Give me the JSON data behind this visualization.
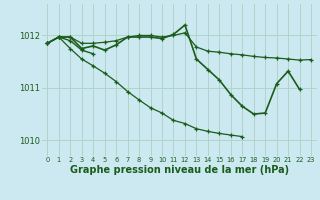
{
  "background_color": "#cce8f0",
  "grid_color": "#b0d4c8",
  "line_color": "#1a5c1a",
  "xlabel": "Graphe pression niveau de la mer (hPa)",
  "xlabel_fontsize": 7,
  "xlim": [
    -0.5,
    23.5
  ],
  "ylim": [
    1009.7,
    1012.6
  ],
  "yticks": [
    1010,
    1011,
    1012
  ],
  "xticks": [
    0,
    1,
    2,
    3,
    4,
    5,
    6,
    7,
    8,
    9,
    10,
    11,
    12,
    13,
    14,
    15,
    16,
    17,
    18,
    19,
    20,
    21,
    22,
    23
  ],
  "series": [
    {
      "x": [
        0,
        1,
        2,
        3,
        4,
        5,
        6,
        7,
        8,
        9,
        10,
        11,
        12,
        13,
        14,
        15,
        16,
        17,
        18,
        19,
        20,
        21,
        22,
        23
      ],
      "y": [
        1011.85,
        1011.97,
        1011.97,
        1011.85,
        1011.85,
        1011.87,
        1011.9,
        1011.97,
        1012.0,
        1012.0,
        1011.97,
        1012.0,
        1012.05,
        1011.78,
        1011.7,
        1011.68,
        1011.65,
        1011.63,
        1011.6,
        1011.58,
        1011.57,
        1011.55,
        1011.53,
        1011.54
      ],
      "lw": 0.9
    },
    {
      "x": [
        0,
        1,
        2,
        3,
        4,
        5,
        6,
        7,
        8,
        9,
        10,
        11,
        12,
        13,
        14,
        15,
        16,
        17,
        18,
        19,
        20,
        21,
        22
      ],
      "y": [
        1011.85,
        1011.97,
        1011.97,
        1011.75,
        1011.8,
        1011.72,
        1011.82,
        1011.97,
        1011.97,
        1011.97,
        1011.94,
        1012.02,
        1012.2,
        1011.55,
        1011.35,
        1011.15,
        1010.87,
        1010.65,
        1010.5,
        1010.52,
        1011.08,
        1011.32,
        1010.97
      ],
      "lw": 1.2
    },
    {
      "x": [
        0,
        1,
        2,
        3,
        4
      ],
      "y": [
        1011.85,
        1011.97,
        1011.9,
        1011.72,
        1011.65
      ],
      "lw": 1.0
    },
    {
      "x": [
        0,
        1,
        2,
        3,
        4,
        5,
        6,
        7,
        8,
        9,
        10,
        11,
        12,
        13,
        14,
        15,
        16,
        17
      ],
      "y": [
        1011.85,
        1011.97,
        1011.75,
        1011.55,
        1011.42,
        1011.28,
        1011.12,
        1010.93,
        1010.77,
        1010.62,
        1010.52,
        1010.38,
        1010.32,
        1010.22,
        1010.17,
        1010.13,
        1010.1,
        1010.07
      ],
      "lw": 0.9
    }
  ]
}
